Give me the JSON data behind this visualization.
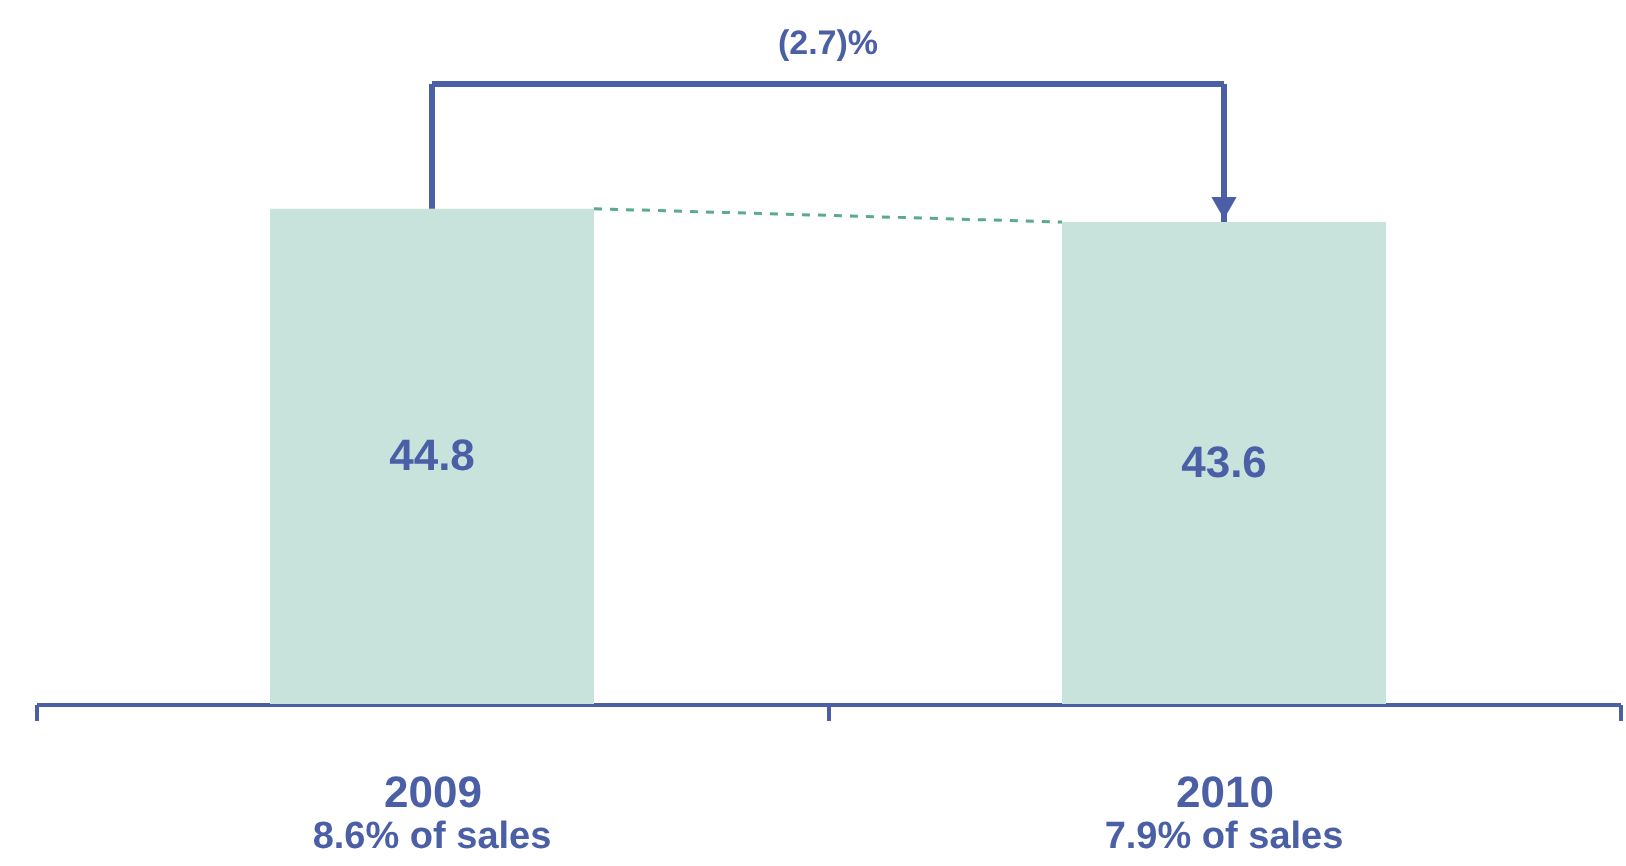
{
  "chart_data": {
    "type": "bar",
    "categories": [
      "2009",
      "2010"
    ],
    "values": [
      44.8,
      43.6
    ],
    "color": "#c7e3dc",
    "data_labels": true,
    "annotations": [
      "(2.7)%",
      "8.6%  of sales",
      "7.9%  of sales"
    ]
  }
}
